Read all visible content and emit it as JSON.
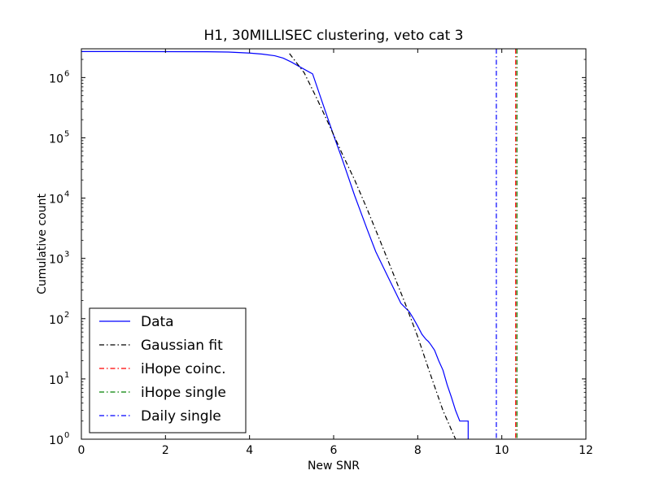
{
  "chart_data": {
    "type": "line",
    "title": "H1, 30MILLISEC clustering, veto cat 3",
    "xlabel": "New SNR",
    "ylabel": "Cumulative count",
    "xlim": [
      0,
      12
    ],
    "ylim": [
      1,
      3000000
    ],
    "yscale": "log",
    "xticks": [
      0,
      2,
      4,
      6,
      8,
      10,
      12
    ],
    "yticks": [
      {
        "value": 1,
        "base": "10",
        "exp": "0"
      },
      {
        "value": 10,
        "base": "10",
        "exp": "1"
      },
      {
        "value": 100,
        "base": "10",
        "exp": "2"
      },
      {
        "value": 1000,
        "base": "10",
        "exp": "3"
      },
      {
        "value": 10000,
        "base": "10",
        "exp": "4"
      },
      {
        "value": 100000,
        "base": "10",
        "exp": "5"
      },
      {
        "value": 1000000,
        "base": "10",
        "exp": "6"
      }
    ],
    "legend_position": "lower-left",
    "grid": false,
    "series": [
      {
        "name": "Data",
        "color": "#0000ff",
        "style": "solid",
        "x": [
          0,
          1,
          2,
          3,
          3.5,
          4,
          4.3,
          4.6,
          4.8,
          5.0,
          5.2,
          5.5,
          5.8,
          6.0,
          6.2,
          6.5,
          6.8,
          7.0,
          7.3,
          7.6,
          7.8,
          7.9,
          8.0,
          8.1,
          8.2,
          8.25,
          8.3,
          8.4,
          8.5,
          8.6,
          8.7,
          8.8,
          8.9,
          9.0,
          9.2,
          9.2
        ],
        "y": [
          2700000,
          2700000,
          2690000,
          2680000,
          2650000,
          2550000,
          2450000,
          2300000,
          2100000,
          1800000,
          1500000,
          1150000,
          280000,
          110000,
          45000,
          11000,
          3000,
          1300,
          480,
          180,
          130,
          100,
          75,
          55,
          45,
          42,
          38,
          30,
          20,
          14,
          8,
          5,
          3,
          2,
          2,
          1
        ]
      },
      {
        "name": "Gaussian fit",
        "color": "#000000",
        "style": "dashdot",
        "x": [
          4.95,
          5.3,
          5.6,
          5.9,
          6.2,
          6.5,
          6.8,
          7.1,
          7.4,
          7.7,
          8.0,
          8.3,
          8.6,
          8.9
        ],
        "y": [
          2500000,
          1200000,
          450000,
          160000,
          55000,
          20000,
          6500,
          2000,
          600,
          180,
          50,
          12,
          3,
          1
        ]
      },
      {
        "name": "iHope coinc.",
        "color": "#ff0000",
        "style": "dashdot",
        "vline": 10.33
      },
      {
        "name": "iHope single",
        "color": "#008000",
        "style": "dashdot",
        "vline": 10.36
      },
      {
        "name": "Daily single",
        "color": "#0000ff",
        "style": "dashdot",
        "vline": 9.87
      }
    ]
  }
}
